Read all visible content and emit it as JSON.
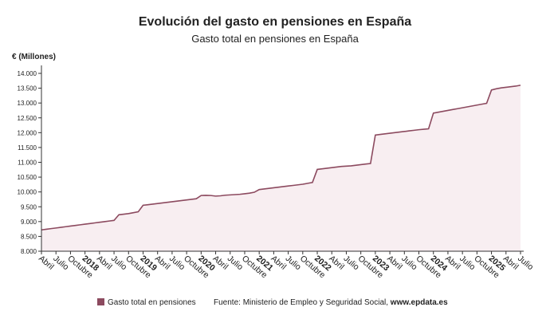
{
  "chart_data": {
    "type": "line",
    "title": "Evolución del gasto en pensiones en España",
    "subtitle": "Gasto total en pensiones en España",
    "y_label": "€ (Millones)",
    "source": "Fuente: Ministerio de Empleo y Seguridad Social,",
    "source_link": "www.epdata.es",
    "categories": [
      "Abril",
      null,
      null,
      "Julio",
      null,
      null,
      "Octubre",
      null,
      null,
      "2018",
      null,
      null,
      "Abril",
      null,
      null,
      "Julio",
      null,
      null,
      "Octubre",
      null,
      null,
      "2019",
      null,
      null,
      "Abril",
      null,
      null,
      "Julio",
      null,
      null,
      "Octubre",
      null,
      null,
      "2020",
      null,
      null,
      "Abril",
      null,
      null,
      "Julio",
      null,
      null,
      "Octubre",
      null,
      null,
      "2021",
      null,
      null,
      "Abril",
      null,
      null,
      "Julio",
      null,
      null,
      "Octubre",
      null,
      null,
      "2022",
      null,
      null,
      "Abril",
      null,
      null,
      "Julio",
      null,
      null,
      "Octubre",
      null,
      null,
      "2023",
      null,
      null,
      "Abril",
      null,
      null,
      "Julio",
      null,
      null,
      "Octubre",
      null,
      null,
      "2024",
      null,
      null,
      "Abril",
      null,
      null,
      "Julio",
      null,
      null,
      "Octubre",
      null,
      null,
      "2025",
      null,
      null,
      "Abril",
      null,
      null,
      "Julio"
    ],
    "series": [
      {
        "name": "Gasto total en pensiones",
        "color": "#8c4a5f",
        "values": [
          8720,
          8741,
          8763,
          8784,
          8805,
          8827,
          8848,
          8869,
          8891,
          8912,
          8933,
          8955,
          8976,
          8997,
          9019,
          9040,
          9230,
          9250,
          9270,
          9300,
          9330,
          9550,
          9570,
          9590,
          9610,
          9630,
          9650,
          9670,
          9690,
          9710,
          9730,
          9750,
          9770,
          9880,
          9885,
          9880,
          9860,
          9870,
          9890,
          9900,
          9910,
          9920,
          9940,
          9960,
          9990,
          10080,
          10100,
          10120,
          10140,
          10160,
          10180,
          10200,
          10220,
          10240,
          10260,
          10290,
          10320,
          10760,
          10780,
          10800,
          10820,
          10840,
          10860,
          10870,
          10880,
          10900,
          10920,
          10940,
          10960,
          11920,
          11940,
          11960,
          11980,
          12000,
          12020,
          12040,
          12060,
          12080,
          12100,
          12115,
          12130,
          12660,
          12690,
          12720,
          12750,
          12780,
          12810,
          12840,
          12870,
          12900,
          12930,
          12960,
          12990,
          13440,
          13480,
          13510,
          13530,
          13550,
          13570,
          13600
        ]
      }
    ],
    "area_color": "#f8eef1",
    "ylim": [
      8000,
      14000
    ],
    "yticks": [
      {
        "value": 8000,
        "label": "8.000"
      },
      {
        "value": 8500,
        "label": "8.500"
      },
      {
        "value": 9000,
        "label": "9.000"
      },
      {
        "value": 9500,
        "label": "9.500"
      },
      {
        "value": 10000,
        "label": "10.000"
      },
      {
        "value": 10500,
        "label": "10.500"
      },
      {
        "value": 11000,
        "label": "11.000"
      },
      {
        "value": 11500,
        "label": "11.500"
      },
      {
        "value": 12000,
        "label": "12.000"
      },
      {
        "value": 12500,
        "label": "12.500"
      },
      {
        "value": 13000,
        "label": "13.000"
      },
      {
        "value": 13500,
        "label": "13.500"
      },
      {
        "value": 14000,
        "label": "14.000"
      }
    ]
  }
}
